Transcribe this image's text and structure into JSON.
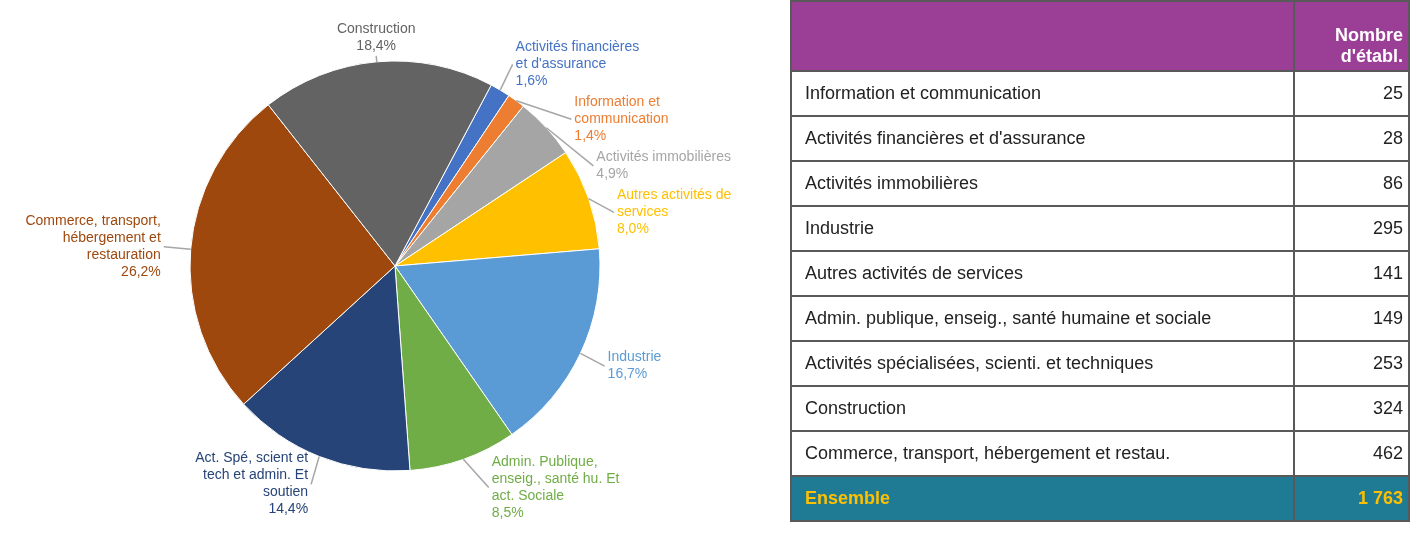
{
  "chart_data": [
    {
      "type": "pie",
      "categories": [
        "Activités financières et d'assurance",
        "Information et communication",
        "Activités immobilières",
        "Autres activités de services",
        "Industrie",
        "Admin. Publique, enseig., santé hu. Et act. Sociale",
        "Act. Spé, scient et tech et admin. Et soutien",
        "Commerce, transport, hébergement et restauration",
        "Construction"
      ],
      "values": [
        1.6,
        1.4,
        4.9,
        8.0,
        16.7,
        8.5,
        14.4,
        26.2,
        18.4
      ],
      "colors": [
        "#4472c4",
        "#ed7d31",
        "#a5a5a5",
        "#ffc000",
        "#5b9bd5",
        "#70ad47",
        "#264478",
        "#9e480e",
        "#636363"
      ],
      "value_labels": [
        "1,6%",
        "1,4%",
        "4,9%",
        "8,0%",
        "16,7%",
        "8,5%",
        "14,4%",
        "26,2%",
        "18,4%"
      ]
    },
    {
      "type": "other",
      "title": "Nombre d'établ.",
      "categories": [
        "Information et communication",
        "Activités financières et d'assurance",
        "Activités immobilières",
        "Industrie",
        "Autres activités de services",
        "Admin. publique, enseig., santé humaine et sociale",
        "Activités spécialisées, scienti. et techniques",
        "Construction",
        "Commerce, transport, hébergement et restau."
      ],
      "values": [
        25,
        28,
        86,
        295,
        141,
        149,
        253,
        324,
        462
      ],
      "data_labels": true,
      "annotations": [
        "Ensemble"
      ],
      "totals": [
        "1 763"
      ]
    }
  ]
}
